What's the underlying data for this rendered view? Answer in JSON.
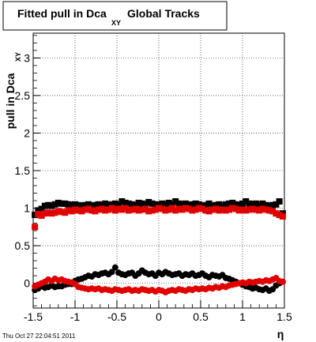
{
  "chart_data": {
    "type": "scatter",
    "title": "Fitted pull in Dca",
    "title_sub": "XY",
    "title_suffix": "Global Tracks",
    "ylabel": "pull in Dca",
    "ylabel_sub": "XY",
    "xlabel": "η",
    "xlim": [
      -1.5,
      1.5
    ],
    "ylim": [
      -0.33,
      3.33
    ],
    "grid": true,
    "xticks": [
      {
        "v": -1.5,
        "label": "-1.5"
      },
      {
        "v": -1,
        "label": "-1"
      },
      {
        "v": -0.5,
        "label": "-0.5"
      },
      {
        "v": 0,
        "label": "0"
      },
      {
        "v": 0.5,
        "label": "0.5"
      },
      {
        "v": 1,
        "label": "1"
      },
      {
        "v": 1.5,
        "label": "1.5"
      }
    ],
    "yticks": [
      {
        "v": 0,
        "label": "0"
      },
      {
        "v": 0.5,
        "label": "0.5"
      },
      {
        "v": 1,
        "label": "1"
      },
      {
        "v": 1.5,
        "label": "1.5"
      },
      {
        "v": 2,
        "label": "2"
      },
      {
        "v": 2.5,
        "label": "2.5"
      },
      {
        "v": 3,
        "label": "3"
      }
    ],
    "series": [
      {
        "marker": "square",
        "color": "#000000",
        "x": [
          -1.48,
          -1.44,
          -1.4,
          -1.36,
          -1.32,
          -1.28,
          -1.24,
          -1.2,
          -1.16,
          -1.12,
          -1.08,
          -1.04,
          -1.0,
          -0.96,
          -0.92,
          -0.88,
          -0.84,
          -0.8,
          -0.76,
          -0.72,
          -0.68,
          -0.64,
          -0.6,
          -0.56,
          -0.52,
          -0.48,
          -0.44,
          -0.4,
          -0.36,
          -0.32,
          -0.28,
          -0.24,
          -0.2,
          -0.16,
          -0.12,
          -0.08,
          -0.04,
          0.0,
          0.04,
          0.08,
          0.12,
          0.16,
          0.2,
          0.24,
          0.28,
          0.32,
          0.36,
          0.4,
          0.44,
          0.48,
          0.52,
          0.56,
          0.6,
          0.64,
          0.68,
          0.72,
          0.76,
          0.8,
          0.84,
          0.88,
          0.92,
          0.96,
          1.0,
          1.04,
          1.08,
          1.12,
          1.16,
          1.2,
          1.24,
          1.28,
          1.32,
          1.36,
          1.4,
          1.44,
          1.48
        ],
        "y": [
          0.91,
          0.97,
          0.99,
          1.03,
          1.04,
          1.03,
          1.05,
          1.07,
          1.06,
          1.06,
          1.05,
          1.04,
          1.05,
          1.04,
          1.03,
          1.04,
          1.05,
          1.03,
          1.04,
          1.05,
          1.04,
          1.06,
          1.04,
          1.05,
          1.06,
          1.04,
          1.09,
          1.07,
          1.06,
          1.05,
          1.04,
          1.07,
          1.06,
          1.05,
          1.08,
          1.06,
          1.05,
          1.04,
          1.06,
          1.05,
          1.07,
          1.05,
          1.09,
          1.06,
          1.05,
          1.06,
          1.04,
          1.05,
          1.06,
          1.05,
          1.03,
          1.04,
          1.06,
          1.03,
          1.04,
          1.05,
          1.03,
          1.05,
          1.06,
          1.07,
          1.05,
          1.04,
          1.06,
          1.09,
          1.06,
          1.05,
          1.06,
          1.04,
          1.06,
          1.04,
          1.03,
          1.04,
          1.05,
          1.09,
          0.93
        ]
      },
      {
        "marker": "square",
        "color": "#e00000",
        "x": [
          -1.48,
          -1.44,
          -1.4,
          -1.36,
          -1.32,
          -1.28,
          -1.24,
          -1.2,
          -1.16,
          -1.12,
          -1.08,
          -1.04,
          -1.0,
          -0.96,
          -0.92,
          -0.88,
          -0.84,
          -0.8,
          -0.76,
          -0.72,
          -0.68,
          -0.64,
          -0.6,
          -0.56,
          -0.52,
          -0.48,
          -0.44,
          -0.4,
          -0.36,
          -0.32,
          -0.28,
          -0.24,
          -0.2,
          -0.16,
          -0.12,
          -0.08,
          -0.04,
          0.0,
          0.04,
          0.08,
          0.12,
          0.16,
          0.2,
          0.24,
          0.28,
          0.32,
          0.36,
          0.4,
          0.44,
          0.48,
          0.52,
          0.56,
          0.6,
          0.64,
          0.68,
          0.72,
          0.76,
          0.8,
          0.84,
          0.88,
          0.92,
          0.96,
          1.0,
          1.04,
          1.08,
          1.12,
          1.16,
          1.2,
          1.24,
          1.28,
          1.32,
          1.36,
          1.4,
          1.44,
          1.48
        ],
        "y": [
          0.75,
          0.92,
          0.9,
          0.93,
          0.94,
          0.93,
          0.94,
          0.96,
          0.95,
          0.94,
          0.97,
          0.96,
          0.98,
          0.97,
          0.96,
          0.98,
          0.99,
          0.97,
          0.96,
          0.98,
          0.99,
          0.97,
          0.98,
          1.0,
          0.97,
          0.99,
          0.98,
          1.0,
          0.97,
          0.98,
          0.99,
          0.97,
          0.98,
          0.99,
          0.96,
          0.97,
          0.98,
          1.0,
          0.99,
          0.97,
          0.98,
          1.0,
          0.97,
          0.99,
          0.98,
          1.0,
          0.99,
          0.97,
          0.98,
          1.0,
          0.99,
          0.97,
          0.96,
          0.98,
          0.99,
          0.97,
          0.98,
          0.97,
          0.98,
          1.0,
          0.99,
          0.97,
          0.98,
          0.97,
          0.98,
          0.99,
          0.98,
          0.97,
          0.99,
          0.98,
          0.97,
          0.96,
          0.93,
          0.91,
          0.89
        ]
      },
      {
        "marker": "circle",
        "color": "#000000",
        "x": [
          -1.48,
          -1.44,
          -1.4,
          -1.36,
          -1.32,
          -1.28,
          -1.24,
          -1.2,
          -1.16,
          -1.12,
          -1.08,
          -1.04,
          -1.0,
          -0.96,
          -0.92,
          -0.88,
          -0.84,
          -0.8,
          -0.76,
          -0.72,
          -0.68,
          -0.64,
          -0.6,
          -0.56,
          -0.52,
          -0.48,
          -0.44,
          -0.4,
          -0.36,
          -0.32,
          -0.28,
          -0.24,
          -0.2,
          -0.16,
          -0.12,
          -0.08,
          -0.04,
          0.0,
          0.04,
          0.08,
          0.12,
          0.16,
          0.2,
          0.24,
          0.28,
          0.32,
          0.36,
          0.4,
          0.44,
          0.48,
          0.52,
          0.56,
          0.6,
          0.64,
          0.68,
          0.72,
          0.76,
          0.8,
          0.84,
          0.88,
          0.92,
          0.96,
          1.0,
          1.04,
          1.08,
          1.12,
          1.16,
          1.2,
          1.24,
          1.28,
          1.32,
          1.36,
          1.4,
          1.44,
          1.48
        ],
        "y": [
          -0.09,
          -0.07,
          -0.04,
          -0.06,
          -0.05,
          -0.03,
          -0.05,
          -0.04,
          -0.04,
          -0.02,
          -0.01,
          -0.01,
          0.03,
          0.05,
          0.06,
          0.08,
          0.1,
          0.09,
          0.12,
          0.11,
          0.13,
          0.14,
          0.12,
          0.15,
          0.21,
          0.14,
          0.12,
          0.11,
          0.13,
          0.14,
          0.1,
          0.13,
          0.17,
          0.14,
          0.12,
          0.13,
          0.1,
          0.14,
          0.12,
          0.15,
          0.13,
          0.11,
          0.12,
          0.13,
          0.1,
          0.12,
          0.11,
          0.13,
          0.1,
          0.11,
          0.13,
          0.1,
          0.08,
          0.11,
          0.1,
          0.09,
          0.11,
          0.07,
          0.06,
          0.04,
          0.02,
          0.0,
          -0.02,
          -0.04,
          -0.05,
          -0.07,
          -0.06,
          -0.08,
          -0.09,
          -0.07,
          -0.1,
          -0.08,
          -0.03,
          0.0,
          0.02
        ]
      },
      {
        "marker": "circle",
        "color": "#e00000",
        "x": [
          -1.48,
          -1.44,
          -1.4,
          -1.36,
          -1.32,
          -1.28,
          -1.24,
          -1.2,
          -1.16,
          -1.12,
          -1.08,
          -1.04,
          -1.0,
          -0.96,
          -0.92,
          -0.88,
          -0.84,
          -0.8,
          -0.76,
          -0.72,
          -0.68,
          -0.64,
          -0.6,
          -0.56,
          -0.52,
          -0.48,
          -0.44,
          -0.4,
          -0.36,
          -0.32,
          -0.28,
          -0.24,
          -0.2,
          -0.16,
          -0.12,
          -0.08,
          -0.04,
          0.0,
          0.04,
          0.08,
          0.12,
          0.16,
          0.2,
          0.24,
          0.28,
          0.32,
          0.36,
          0.4,
          0.44,
          0.48,
          0.52,
          0.56,
          0.6,
          0.64,
          0.68,
          0.72,
          0.76,
          0.8,
          0.84,
          0.88,
          0.92,
          0.96,
          1.0,
          1.04,
          1.08,
          1.12,
          1.16,
          1.2,
          1.24,
          1.28,
          1.32,
          1.36,
          1.4,
          1.44,
          1.48
        ],
        "y": [
          -0.04,
          -0.02,
          0.0,
          0.02,
          0.05,
          0.03,
          0.06,
          0.04,
          0.05,
          0.03,
          0.02,
          0.01,
          -0.01,
          -0.05,
          -0.06,
          -0.07,
          -0.08,
          -0.07,
          -0.08,
          -0.07,
          -0.09,
          -0.08,
          -0.09,
          -0.1,
          -0.08,
          -0.09,
          -0.1,
          -0.09,
          -0.08,
          -0.1,
          -0.09,
          -0.1,
          -0.08,
          -0.09,
          -0.1,
          -0.09,
          -0.11,
          -0.09,
          -0.1,
          -0.12,
          -0.1,
          -0.09,
          -0.1,
          -0.08,
          -0.09,
          -0.1,
          -0.08,
          -0.09,
          -0.07,
          -0.08,
          -0.07,
          -0.08,
          -0.06,
          -0.07,
          -0.05,
          -0.06,
          -0.04,
          -0.05,
          -0.03,
          -0.02,
          -0.01,
          0.0,
          0.01,
          0.0,
          0.02,
          0.01,
          0.02,
          0.03,
          0.02,
          0.04,
          0.03,
          0.05,
          0.07,
          0.03,
          0.02
        ]
      }
    ]
  },
  "footer": {
    "timestamp": "Thu Oct 27 22:04:51 2011"
  }
}
